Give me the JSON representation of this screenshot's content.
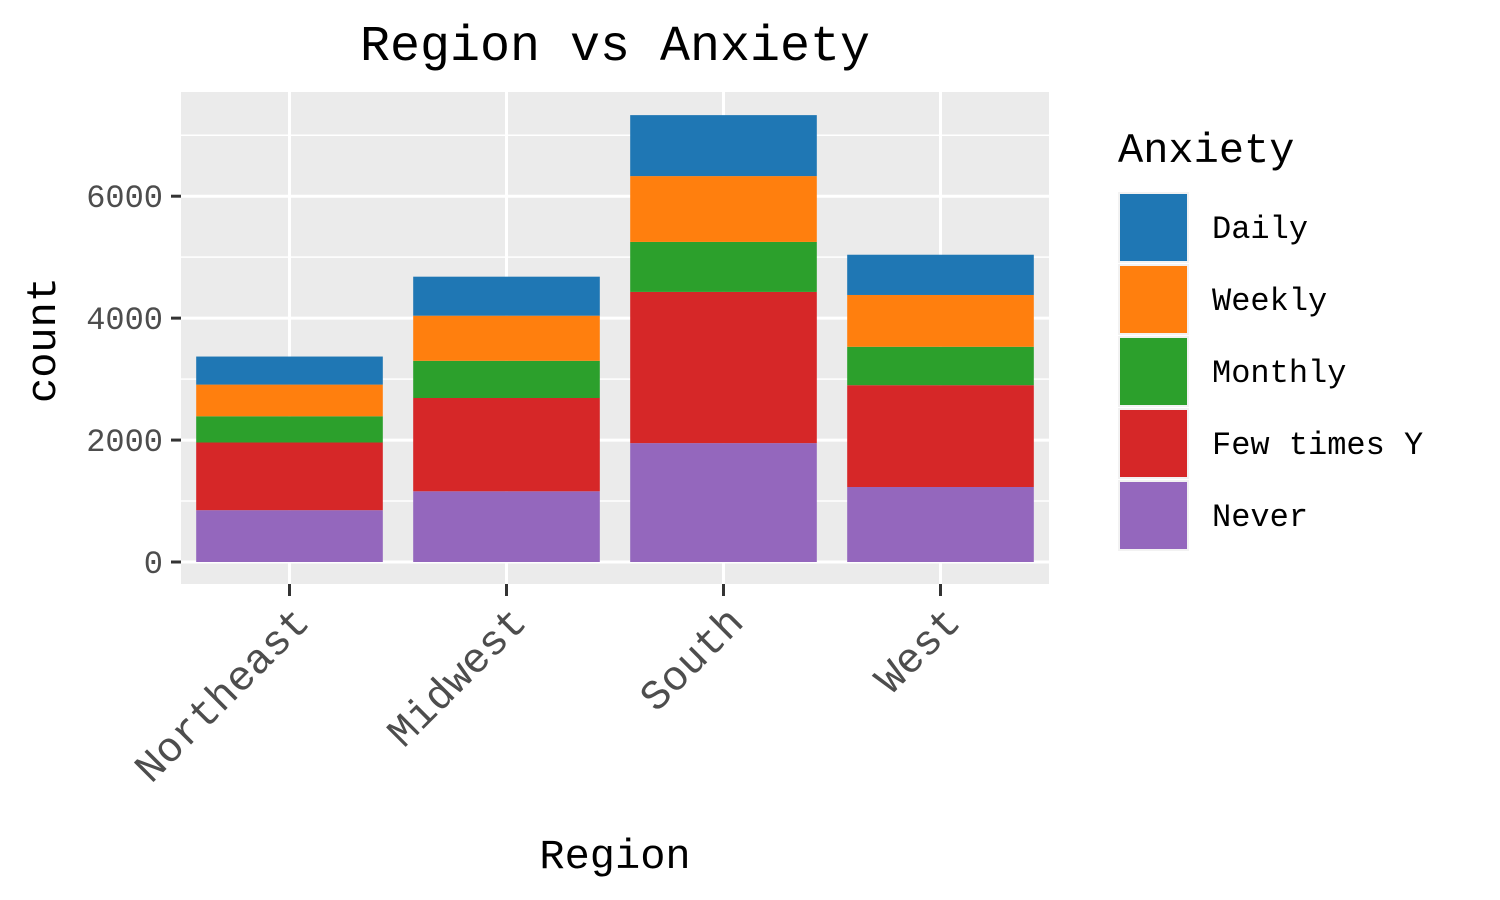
{
  "chart_data": {
    "type": "bar",
    "stacked": true,
    "title": "Region vs Anxiety",
    "xlabel": "Region",
    "ylabel": "count",
    "categories": [
      "Northeast",
      "Midwest",
      "South",
      "West"
    ],
    "ylim": [
      0,
      7650
    ],
    "yticks": [
      0,
      2000,
      4000,
      6000
    ],
    "grid": true,
    "legend_position": "right",
    "legend_title": "Anxiety",
    "series": [
      {
        "name": "Never",
        "color": "#9467bd",
        "values": [
          850,
          1160,
          1950,
          1230
        ]
      },
      {
        "name": "Few times Y",
        "color": "#d62728",
        "values": [
          1110,
          1530,
          2480,
          1670
        ]
      },
      {
        "name": "Monthly",
        "color": "#2ca02c",
        "values": [
          430,
          610,
          820,
          630
        ]
      },
      {
        "name": "Weekly",
        "color": "#ff7f0e",
        "values": [
          520,
          740,
          1080,
          850
        ]
      },
      {
        "name": "Daily",
        "color": "#1f77b4",
        "values": [
          460,
          640,
          1000,
          660
        ]
      }
    ]
  }
}
